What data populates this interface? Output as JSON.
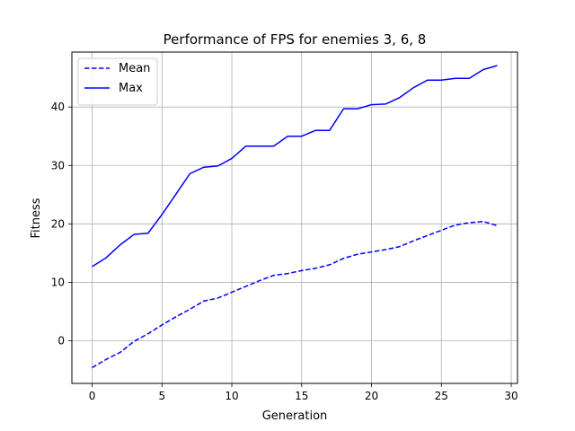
{
  "chart_data": {
    "type": "line",
    "title": "Performance of FPS for enemies 3, 6, 8",
    "xlabel": "Generation",
    "ylabel": "Fitness",
    "xlim": [
      -1.45,
      30.45
    ],
    "ylim": [
      -7.3,
      49.4
    ],
    "xticks": [
      0,
      5,
      10,
      15,
      20,
      25,
      30
    ],
    "yticks": [
      0,
      10,
      20,
      30,
      40
    ],
    "grid": true,
    "legend_position": "top-left",
    "x": [
      0,
      1,
      2,
      3,
      4,
      5,
      6,
      7,
      8,
      9,
      10,
      11,
      12,
      13,
      14,
      15,
      16,
      17,
      18,
      19,
      20,
      21,
      22,
      23,
      24,
      25,
      26,
      27,
      28,
      29
    ],
    "series": [
      {
        "name": "Mean",
        "style": "dashed",
        "color": "#0000ff",
        "values": [
          -4.6,
          -3.2,
          -2.0,
          -0.1,
          1.2,
          2.7,
          4.1,
          5.4,
          6.8,
          7.3,
          8.3,
          9.3,
          10.3,
          11.2,
          11.5,
          12.0,
          12.4,
          13.0,
          14.1,
          14.8,
          15.2,
          15.6,
          16.1,
          17.1,
          18.0,
          18.9,
          19.8,
          20.2,
          20.4,
          19.7
        ]
      },
      {
        "name": "Max",
        "style": "solid",
        "color": "#0000ff",
        "values": [
          12.7,
          14.2,
          16.4,
          18.2,
          18.4,
          21.6,
          25.1,
          28.6,
          29.7,
          29.9,
          31.2,
          33.3,
          33.3,
          33.3,
          35.0,
          35.0,
          36.0,
          36.0,
          39.7,
          39.7,
          40.4,
          40.5,
          41.6,
          43.3,
          44.6,
          44.6,
          44.9,
          44.9,
          46.4,
          47.1
        ]
      }
    ]
  }
}
